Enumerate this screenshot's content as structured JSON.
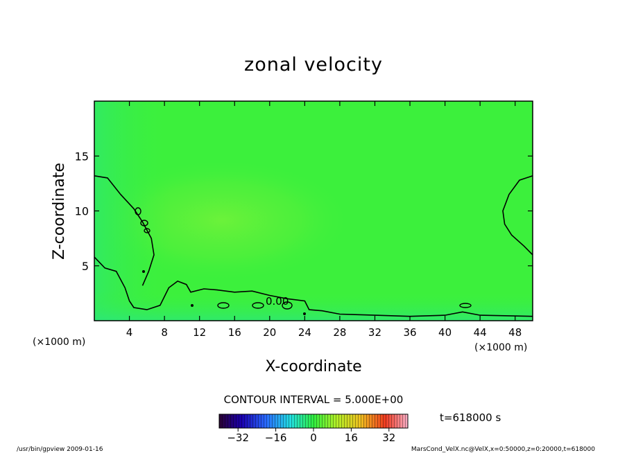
{
  "chart_data": {
    "type": "heatmap",
    "title": "zonal velocity",
    "xlabel": "X-coordinate",
    "ylabel": "Z-coordinate",
    "x_unit_left": "(×1000 m)",
    "x_unit_right": "(×1000 m)",
    "xlim": [
      0,
      50
    ],
    "ylim": [
      0,
      20
    ],
    "xticks": [
      4,
      8,
      12,
      16,
      20,
      24,
      28,
      32,
      36,
      40,
      44,
      48
    ],
    "yticks": [
      5,
      10,
      15
    ],
    "contour_interval_text": "CONTOUR INTERVAL = 5.000E+00",
    "contour_label": "0.00",
    "time_text": "t=618000 s",
    "colorbar": {
      "range": [
        -40,
        40
      ],
      "ticks": [
        -32,
        -16,
        0,
        16,
        32
      ]
    },
    "footer_left": "/usr/bin/gpview  2009-01-16",
    "footer_right": "MarsCond_VelX.nc@VelX,x=0:50000,z=0:20000,t=618000",
    "field_description_color": "#3cf03c",
    "contour_zero_upper_left": [
      [
        0,
        13.2
      ],
      [
        1.5,
        13.0
      ],
      [
        3,
        11.5
      ],
      [
        4.5,
        10.2
      ],
      [
        5.5,
        9.0
      ],
      [
        6.5,
        7.5
      ],
      [
        6.8,
        6.0
      ],
      [
        6.2,
        4.5
      ],
      [
        5.5,
        3.2
      ]
    ],
    "contour_zero_lower": [
      [
        0,
        5.8
      ],
      [
        1.2,
        4.8
      ],
      [
        2.5,
        4.5
      ],
      [
        3.5,
        3.0
      ],
      [
        4,
        1.8
      ],
      [
        4.5,
        1.2
      ],
      [
        6,
        1.0
      ],
      [
        7.5,
        1.4
      ],
      [
        8,
        2.2
      ],
      [
        8.5,
        3.0
      ],
      [
        9.5,
        3.6
      ],
      [
        10.5,
        3.3
      ],
      [
        11,
        2.6
      ],
      [
        12.5,
        2.9
      ],
      [
        14,
        2.8
      ],
      [
        16,
        2.6
      ],
      [
        18,
        2.7
      ],
      [
        20,
        2.3
      ],
      [
        22,
        2.0
      ],
      [
        24,
        1.8
      ],
      [
        24.5,
        1.0
      ],
      [
        26,
        0.9
      ],
      [
        28,
        0.6
      ],
      [
        32,
        0.5
      ],
      [
        36,
        0.4
      ],
      [
        40,
        0.5
      ],
      [
        42,
        0.8
      ],
      [
        44,
        0.5
      ],
      [
        50,
        0.4
      ]
    ],
    "contour_right_lobe": [
      [
        50,
        13.2
      ],
      [
        48.5,
        12.8
      ],
      [
        47.3,
        11.5
      ],
      [
        46.6,
        10.0
      ],
      [
        46.8,
        8.8
      ],
      [
        47.6,
        7.8
      ],
      [
        49,
        6.8
      ],
      [
        50,
        6.0
      ]
    ]
  }
}
